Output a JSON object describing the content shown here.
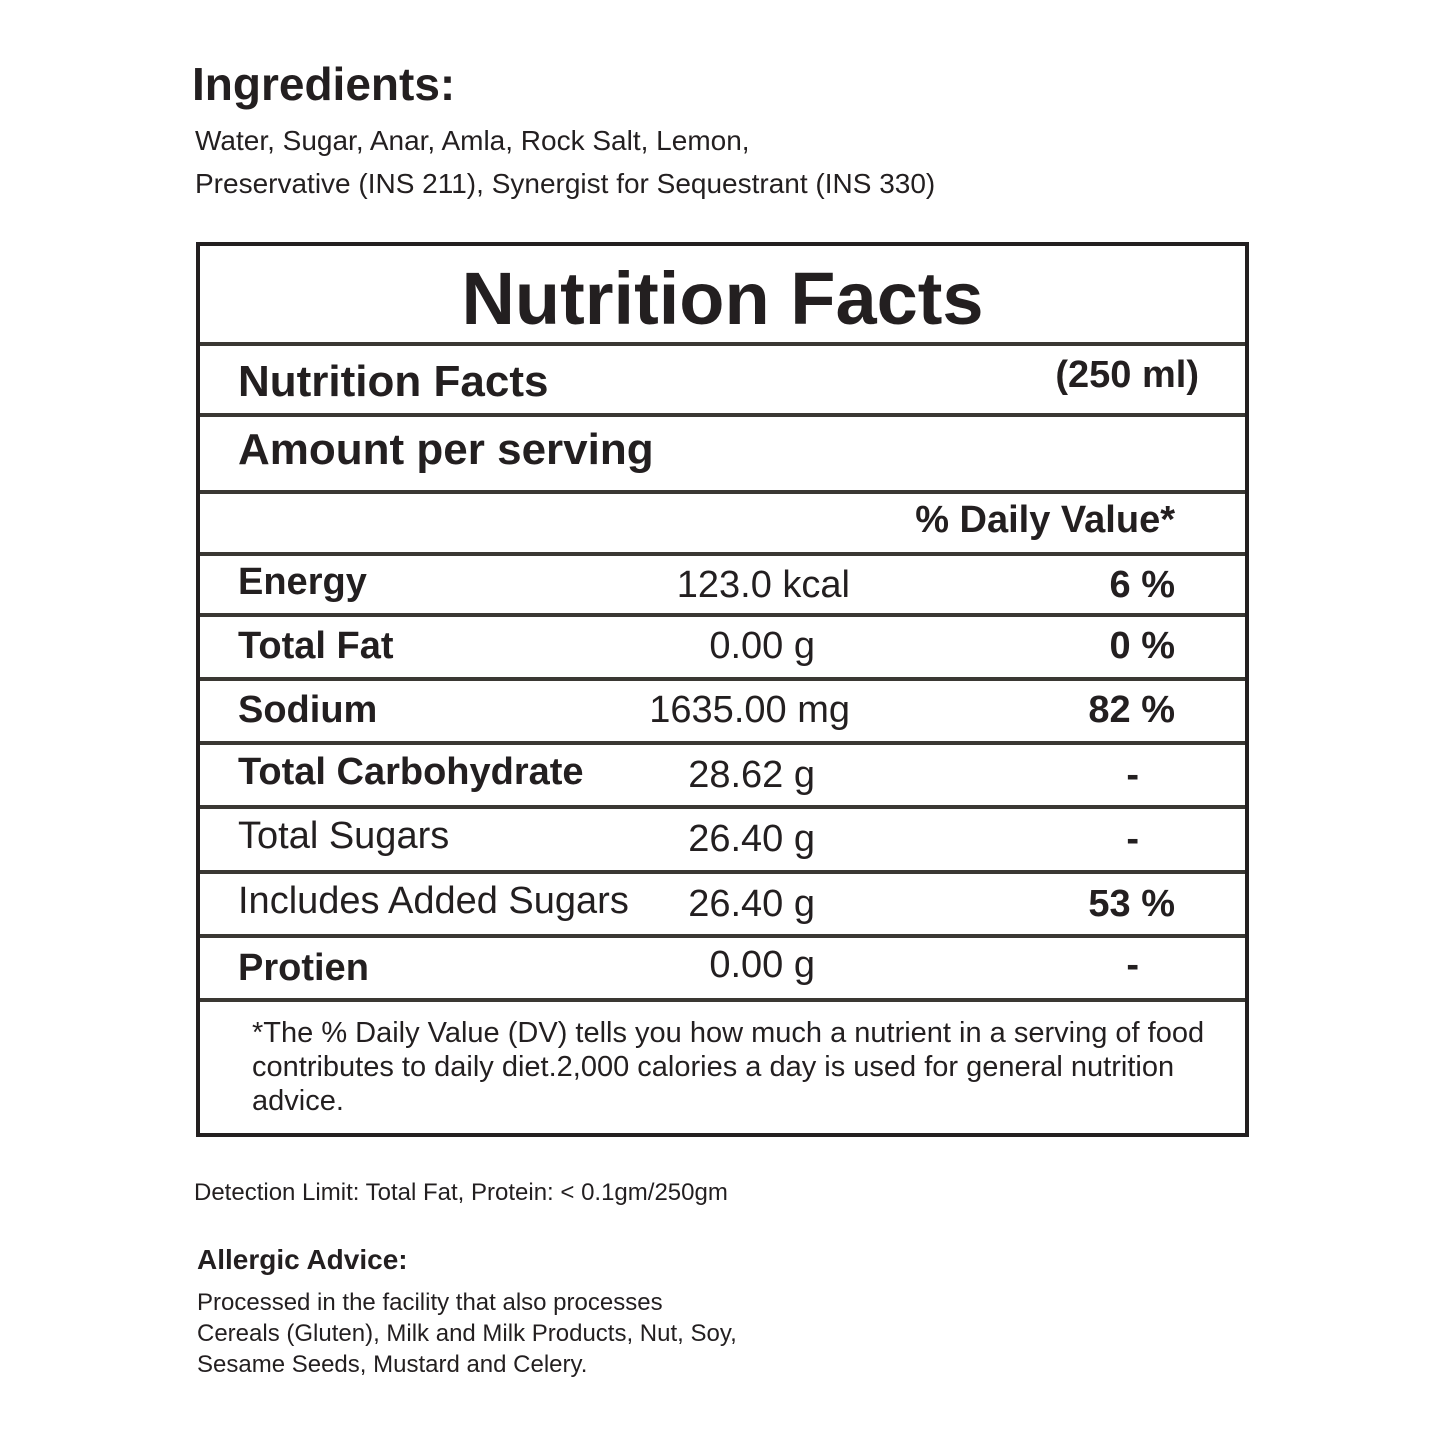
{
  "ingredients": {
    "title": "Ingredients:",
    "line1": "Water, Sugar, Anar, Amla, Rock Salt, Lemon,",
    "line2": "Preservative (INS 211), Synergist for Sequestrant (INS 330)"
  },
  "facts": {
    "title": "Nutrition Facts",
    "subtitle": "Nutrition Facts",
    "serving_size": "(250 ml)",
    "amount_per_serving": "Amount per serving",
    "daily_value_header": "% Daily Value*",
    "rows": [
      {
        "label": "Energy",
        "amount": "123.0 kcal",
        "dv": "6 %"
      },
      {
        "label": "Total Fat",
        "amount": "0.00 g",
        "dv": "0 %"
      },
      {
        "label": "Sodium",
        "amount": "1635.00 mg",
        "dv": "82 %"
      },
      {
        "label": "Total Carbohydrate",
        "amount": "28.62 g",
        "dv": "-"
      },
      {
        "label": "Total Sugars",
        "amount": "26.40 g",
        "dv": "-"
      },
      {
        "label": "Includes Added Sugars",
        "amount": "26.40 g",
        "dv": "53 %"
      },
      {
        "label": "Protien",
        "amount": "0.00 g",
        "dv": "-"
      }
    ],
    "footnote": "*The % Daily Value (DV) tells you how much a nutrient in a serving of food contributes to daily diet.2,000 calories a day is used for general nutrition advice."
  },
  "detection_limit": "Detection Limit: Total Fat, Protein: < 0.1gm/250gm",
  "allergic": {
    "title": "Allergic Advice:",
    "line1": "Processed in the facility that also processes",
    "line2": "Cereals (Gluten), Milk and Milk Products, Nut, Soy,",
    "line3": "Sesame Seeds, Mustard and Celery."
  },
  "colors": {
    "text": "#231f20",
    "rule": "#3a3833",
    "background": "#ffffff"
  }
}
